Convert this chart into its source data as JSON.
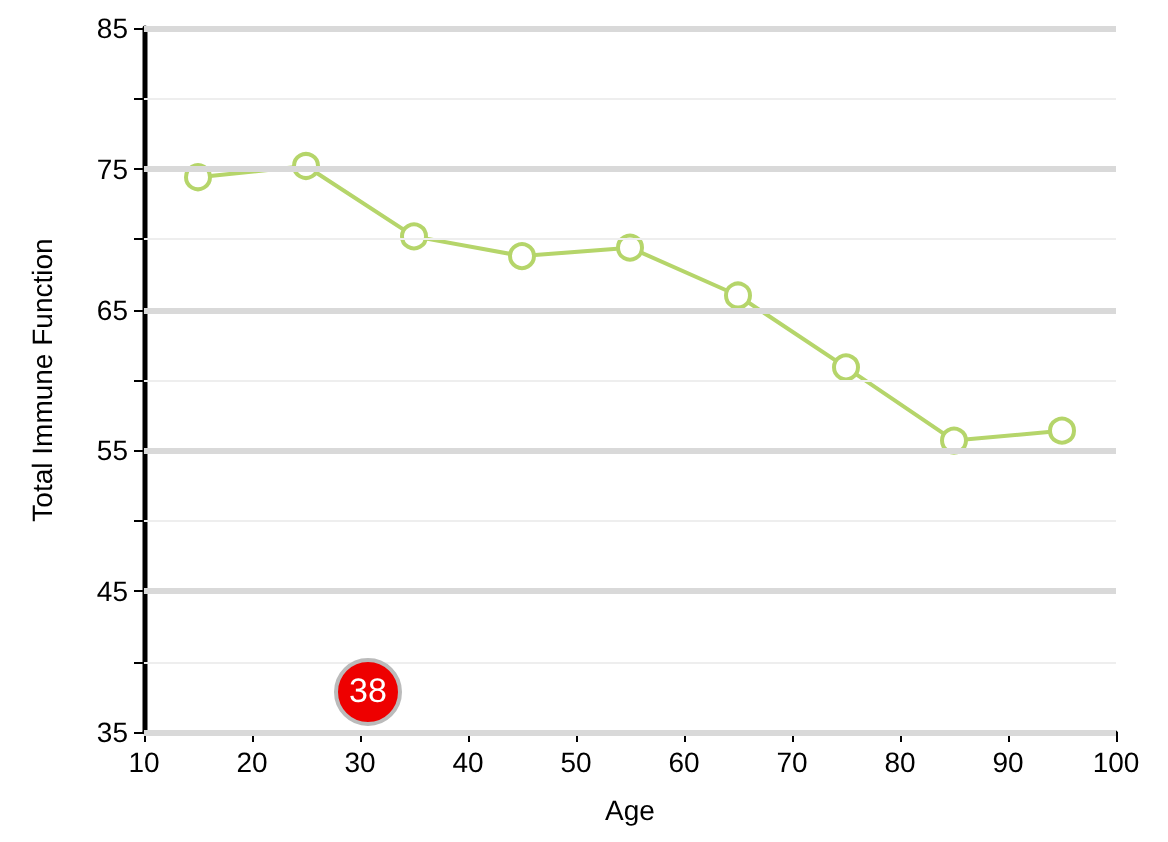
{
  "chart_data": {
    "type": "line",
    "xlabel": "Age",
    "ylabel": "Total Immune Function",
    "x": [
      15,
      25,
      35,
      45,
      55,
      65,
      75,
      85,
      95
    ],
    "series": [
      {
        "color": "#b5d56a",
        "values": [
          74.4,
          75.2,
          70.2,
          68.8,
          69.4,
          66.0,
          60.9,
          55.7,
          56.4
        ]
      }
    ],
    "xlim": [
      10,
      100
    ],
    "xticks": [
      10,
      20,
      30,
      40,
      50,
      60,
      70,
      80,
      90,
      100
    ],
    "ylim": [
      35,
      85
    ],
    "yticks": [
      35,
      {
        "value": 40,
        "label": null
      },
      45,
      {
        "value": 50,
        "label": null
      },
      55,
      {
        "value": 60,
        "label": null
      },
      65,
      {
        "value": 70,
        "label": null
      },
      75,
      {
        "value": 80,
        "label": null
      },
      85
    ],
    "grid": "y",
    "marker": "circle",
    "line_style": "solid",
    "annotations": [
      "38"
    ]
  }
}
